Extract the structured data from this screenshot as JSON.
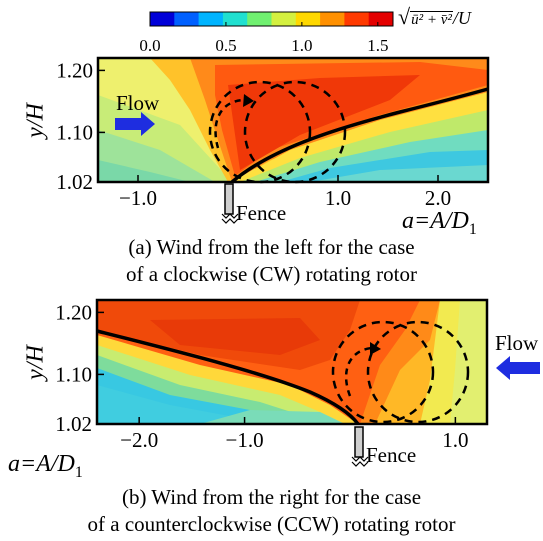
{
  "colorbar": {
    "ticks": [
      "0.0",
      "0.5",
      "1.0",
      "1.5"
    ],
    "tick_values": [
      0.0,
      0.5,
      1.0,
      1.5
    ],
    "range": [
      0.0,
      1.6
    ],
    "colors": [
      "#0000d8",
      "#0060ff",
      "#00b4ff",
      "#20e0d0",
      "#70f070",
      "#d4f040",
      "#ffd800",
      "#ff9000",
      "#ff3a00",
      "#e40000"
    ],
    "label_sqrt": "√",
    "label_u2": "ū² + v̄²",
    "label_over_u": "/U"
  },
  "panel_a": {
    "ylabel": "y/H",
    "yticks": [
      "1.20",
      "1.10",
      "1.02"
    ],
    "ytick_values": [
      1.2,
      1.1,
      1.02
    ],
    "xticks": [
      "−1.0",
      "1.0",
      "2.0"
    ],
    "xtick_values": [
      -1.0,
      1.0,
      2.0
    ],
    "xlim": [
      -1.4,
      2.5
    ],
    "ylim": [
      1.02,
      1.22
    ],
    "flow_label": "Flow",
    "fence_label": "Fence",
    "xlabel_a": "a=A/D",
    "xlabel_sub": "1",
    "caption_line1": "(a) Wind from the left for the case",
    "caption_line2": "of a clockwise (CW) rotating rotor"
  },
  "panel_b": {
    "ylabel": "y/H",
    "yticks": [
      "1.20",
      "1.10",
      "1.02"
    ],
    "ytick_values": [
      1.2,
      1.1,
      1.02
    ],
    "xticks": [
      "−2.0",
      "−1.0",
      "1.0"
    ],
    "xtick_values": [
      -2.0,
      -1.0,
      1.0
    ],
    "xlim": [
      -2.4,
      1.3
    ],
    "ylim": [
      1.02,
      1.22
    ],
    "flow_label": "Flow",
    "fence_label": "Fence",
    "xlabel_a": "a=A/D",
    "xlabel_sub": "1",
    "caption_line1": "(b) Wind from the right for the case",
    "caption_line2": "of a counterclockwise (CCW) rotating rotor"
  },
  "colors": {
    "flow_arrow": "#1e2de0",
    "separation_line": "#000000",
    "rotor_circle": "#000000"
  }
}
